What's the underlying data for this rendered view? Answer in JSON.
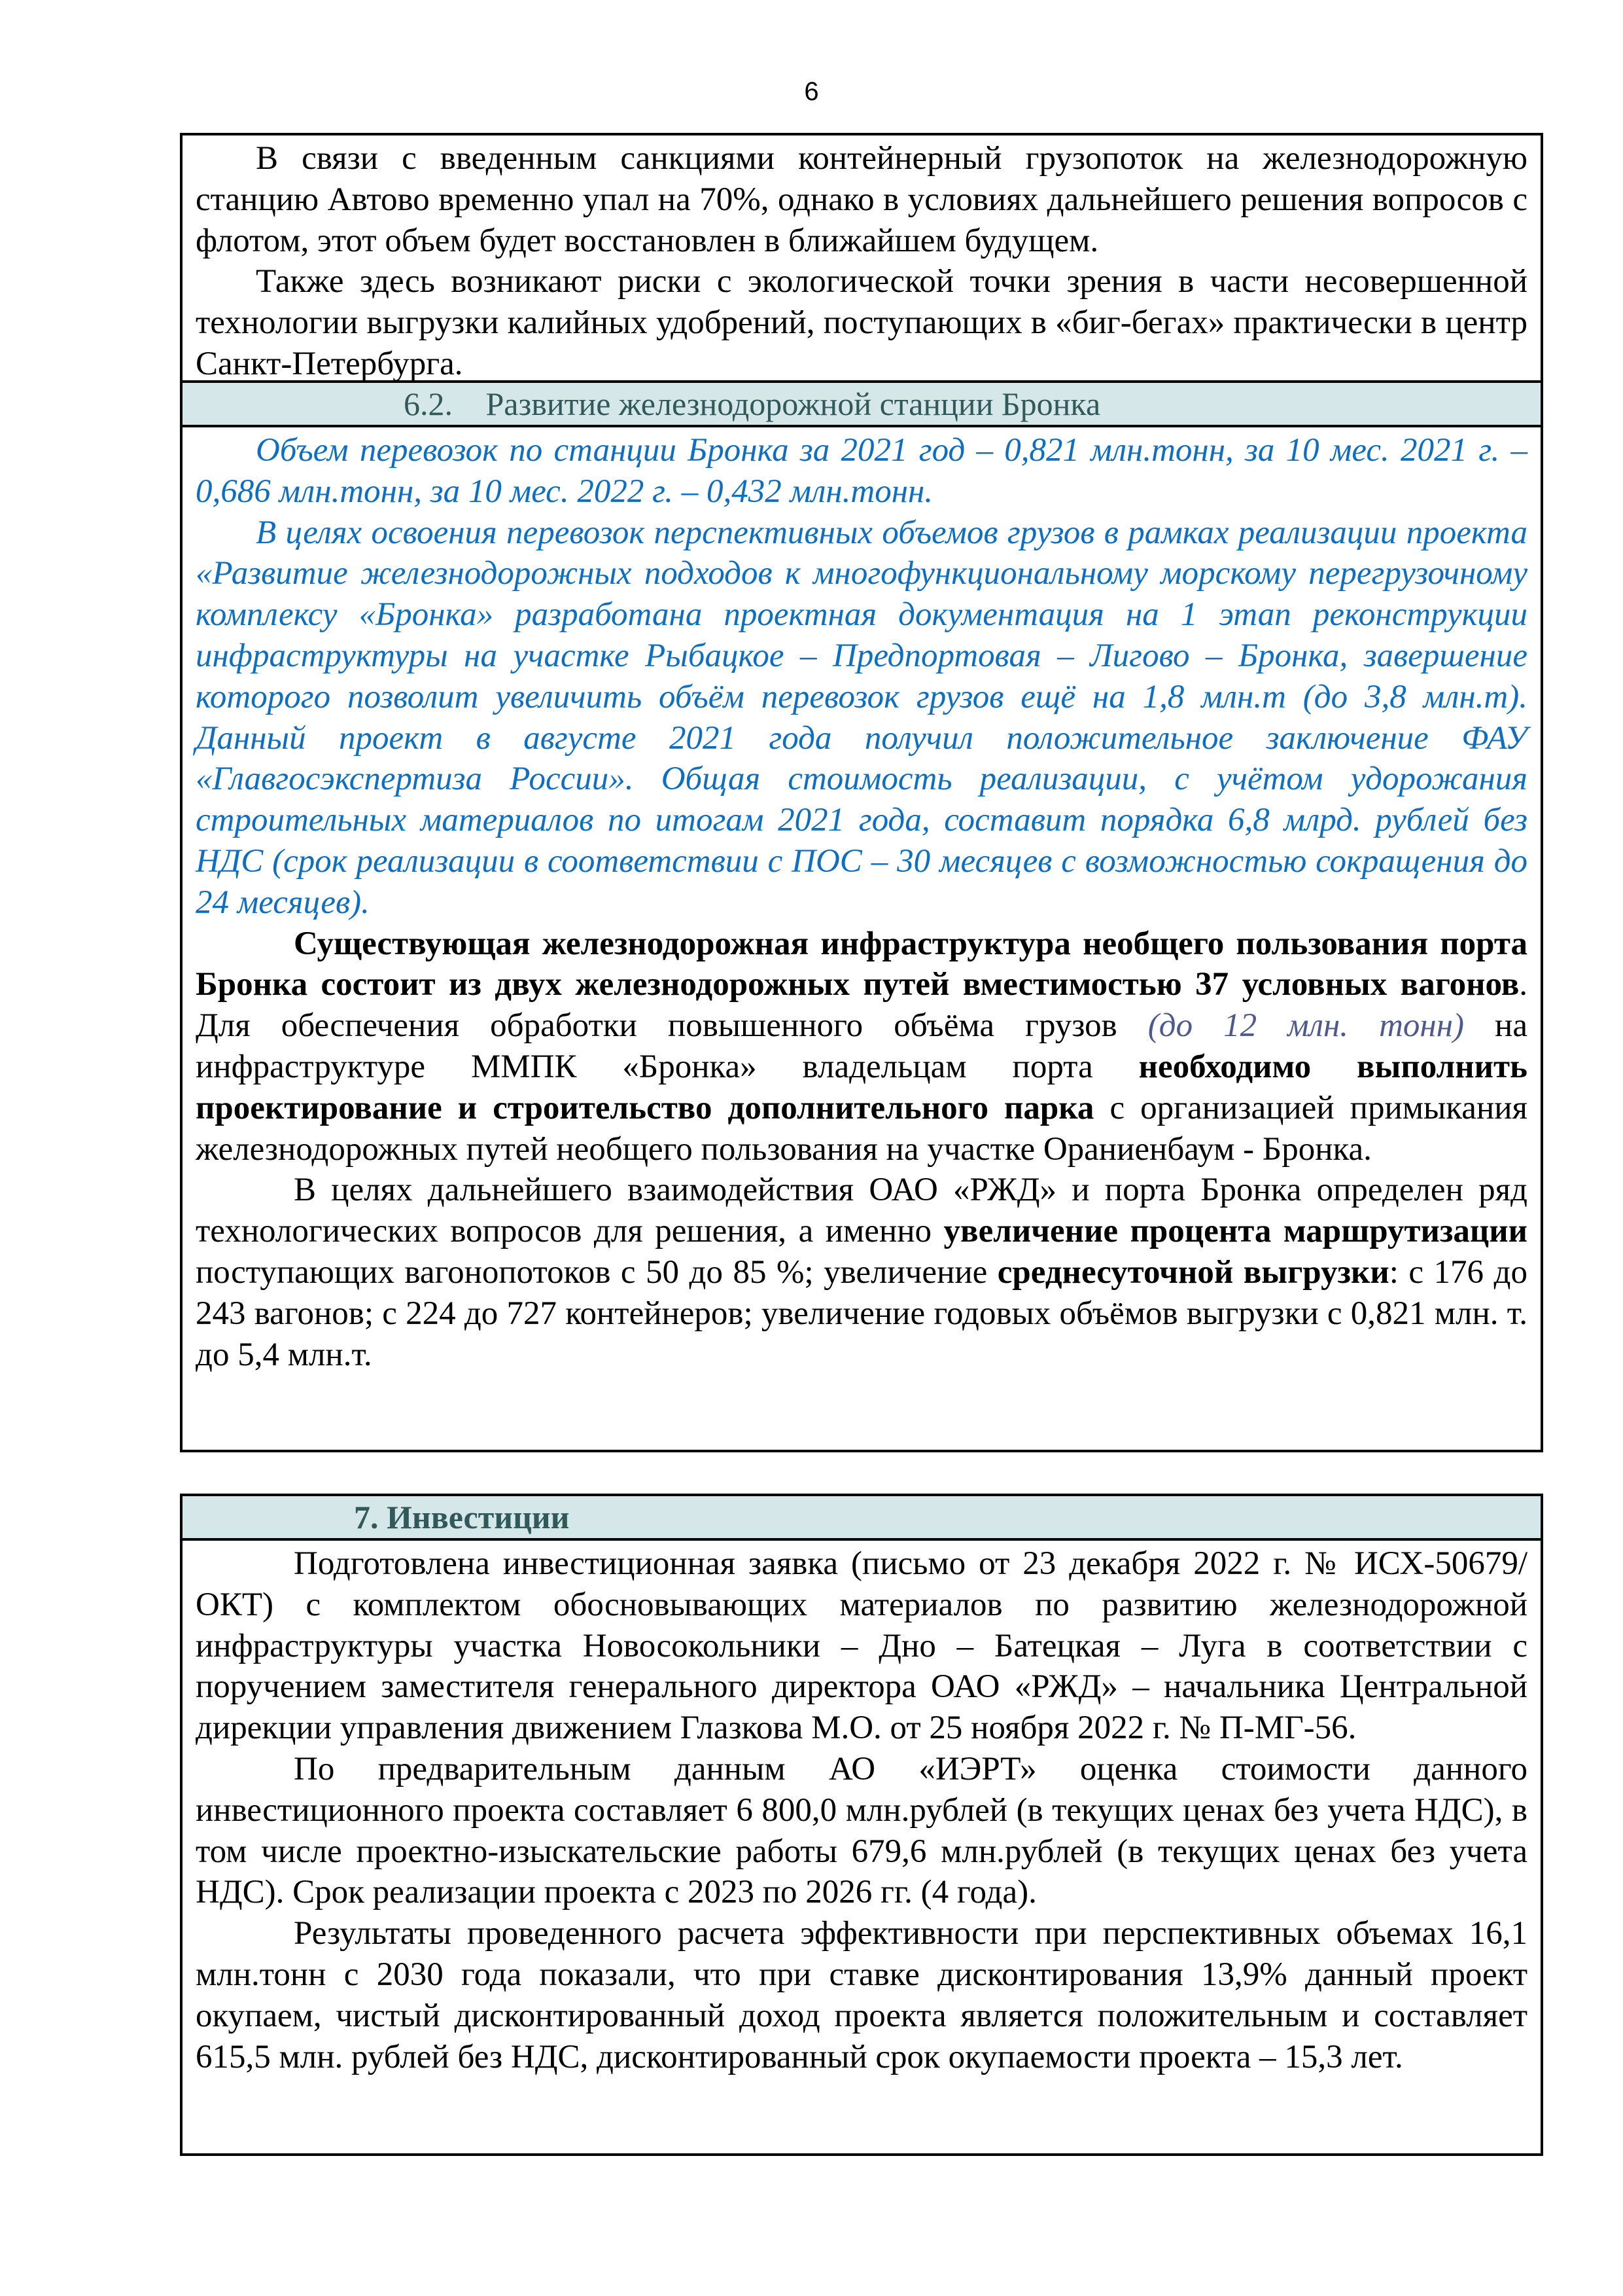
{
  "page_number": "6",
  "colors": {
    "header_bg": "#d6e7ea",
    "header_text": "#31595a",
    "blue_italic": "#0e6fc2",
    "purple_italic": "#4e5a8e"
  },
  "box1": {
    "intro": [
      {
        "indent": "ind1",
        "runs": [
          {
            "t": "В связи с введенным санкциями контейнерный грузопоток на железнодорожную станцию Автово временно упал на 70%, однако в условиях дальнейшего решения вопросов с флотом, этот объем будет восстановлен в ближайшем будущем.",
            "s": ""
          }
        ]
      },
      {
        "indent": "ind1",
        "runs": [
          {
            "t": "Также здесь возникают риски с экологической точки зрения в части несовершенной технологии выгрузки калийных удобрений, поступающих в «биг-бегах» практически в центр Санкт-Петербурга.",
            "s": ""
          }
        ]
      }
    ],
    "section_number": "6.2.",
    "section_title": "Развитие железнодорожной станции Бронка",
    "body": [
      {
        "indent": "ind1",
        "runs": [
          {
            "t": "Объем перевозок по станции Бронка за 2021 год – 0,821 млн.тонн, за 10 мес. 2021 г. – 0,686 млн.тонн, за 10 мес. 2022 г. – 0,432 млн.тонн.",
            "s": "blue"
          }
        ]
      },
      {
        "indent": "ind1",
        "runs": [
          {
            "t": "В целях освоения перевозок перспективных объемов грузов в рамках реализации проекта «Развитие железнодорожных подходов к многофункциональному морскому перегрузочному комплексу «Бронка» разработана проектная документация на 1 этап реконструкции инфраструктуры на участке Рыбацкое – Предпортовая – Лигово – Бронка, завершение которого позволит увеличить объём перевозок грузов ещё на 1,8 млн.т (до 3,8 млн.т). Данный проект в августе 2021 года получил положительное заключение ФАУ «Главгосэкспертиза России». Общая стоимость реализации, с учётом удорожания строительных материалов по итогам 2021 года, составит порядка 6,8 млрд. рублей без НДС (срок реализации в соответствии с ПОС – 30 месяцев с возможностью сокращения до 24 месяцев).",
            "s": "blue"
          }
        ]
      },
      {
        "indent": "ind2",
        "runs": [
          {
            "t": "Существующая железнодорожная инфраструктура необщего пользования порта Бронка состоит из двух железнодорожных путей вместимостью 37 условных вагонов",
            "s": "b"
          },
          {
            "t": ". Для обеспечения обработки повышенного объёма грузов ",
            "s": ""
          },
          {
            "t": "(до 12 млн. тонн)",
            "s": "pi"
          },
          {
            "t": " на инфраструктуре ММПК «Бронка» владельцам порта ",
            "s": ""
          },
          {
            "t": "необходимо выполнить проектирование и строительство дополнительного парка",
            "s": "b"
          },
          {
            "t": " с организацией примыкания железнодорожных путей необщего пользования на участке Ораниенбаум - Бронка.",
            "s": ""
          }
        ]
      },
      {
        "indent": "ind2",
        "runs": [
          {
            "t": "В целях дальнейшего взаимодействия ОАО «РЖД» и порта Бронка определен ряд технологических вопросов для решения, а именно ",
            "s": ""
          },
          {
            "t": "увеличение процента маршрутизации",
            "s": "b"
          },
          {
            "t": " поступающих вагонопотоков с 50 до 85 %; увеличение ",
            "s": ""
          },
          {
            "t": "среднесуточной выгрузки",
            "s": "b"
          },
          {
            "t": ": с 176 до 243 вагонов; с 224 до 727 контейнеров; увеличение годовых объёмов выгрузки с 0,821 млн. т. до 5,4 млн.т.",
            "s": ""
          }
        ]
      }
    ]
  },
  "box2": {
    "section_title": "7. Инвестиции",
    "body": [
      {
        "indent": "ind2",
        "runs": [
          {
            "t": "Подготовлена инвестиционная заявка (письмо от 23 декабря 2022 г. № ИСХ-50679/ОКТ) с комплектом обосновывающих материалов по развитию железнодорожной инфраструктуры участка Новосокольники – Дно – Батецкая – Луга в соответствии с поручением заместителя генерального директора ОАО «РЖД» – начальника Центральной дирекции управления движением Глазкова М.О. от 25 ноября 2022 г. № П-МГ-56.",
            "s": ""
          }
        ]
      },
      {
        "indent": "ind2",
        "runs": [
          {
            "t": "По предварительным данным АО «ИЭРТ» оценка стоимости данного инвестиционного проекта составляет 6 800,0 млн.рублей (в текущих ценах без учета НДС), в том числе проектно-изыскательские работы 679,6 млн.рублей (в текущих ценах без учета НДС). Срок реализации проекта с 2023 по 2026 гг. (4 года).",
            "s": ""
          }
        ]
      },
      {
        "indent": "ind2",
        "runs": [
          {
            "t": "Результаты проведенного расчета эффективности при перспективных объемах 16,1 млн.тонн с 2030 года показали, что при ставке дисконтирования 13,9% данный проект окупаем, чистый дисконтированный доход проекта является положительным и составляет 615,5 млн. рублей без НДС, дисконтированный срок окупаемости проекта – 15,3 лет.",
            "s": ""
          }
        ]
      }
    ]
  }
}
